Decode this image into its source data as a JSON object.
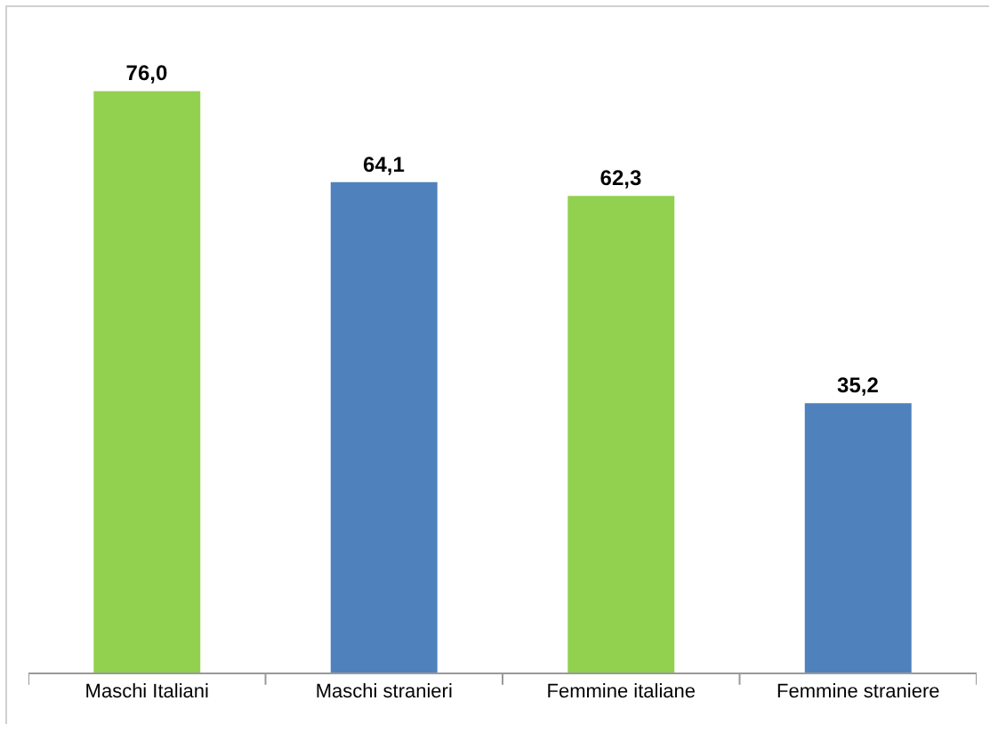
{
  "chart_data": {
    "type": "bar",
    "categories": [
      "Maschi Italiani",
      "Maschi stranieri",
      "Femmine italiane",
      "Femmine straniere"
    ],
    "values": [
      76.0,
      64.1,
      62.3,
      35.2
    ],
    "colors": [
      "#92d050",
      "#4f81bd",
      "#92d050",
      "#4f81bd"
    ],
    "value_labels": [
      "76,0",
      "64,1",
      "62,3",
      "35,2"
    ]
  }
}
